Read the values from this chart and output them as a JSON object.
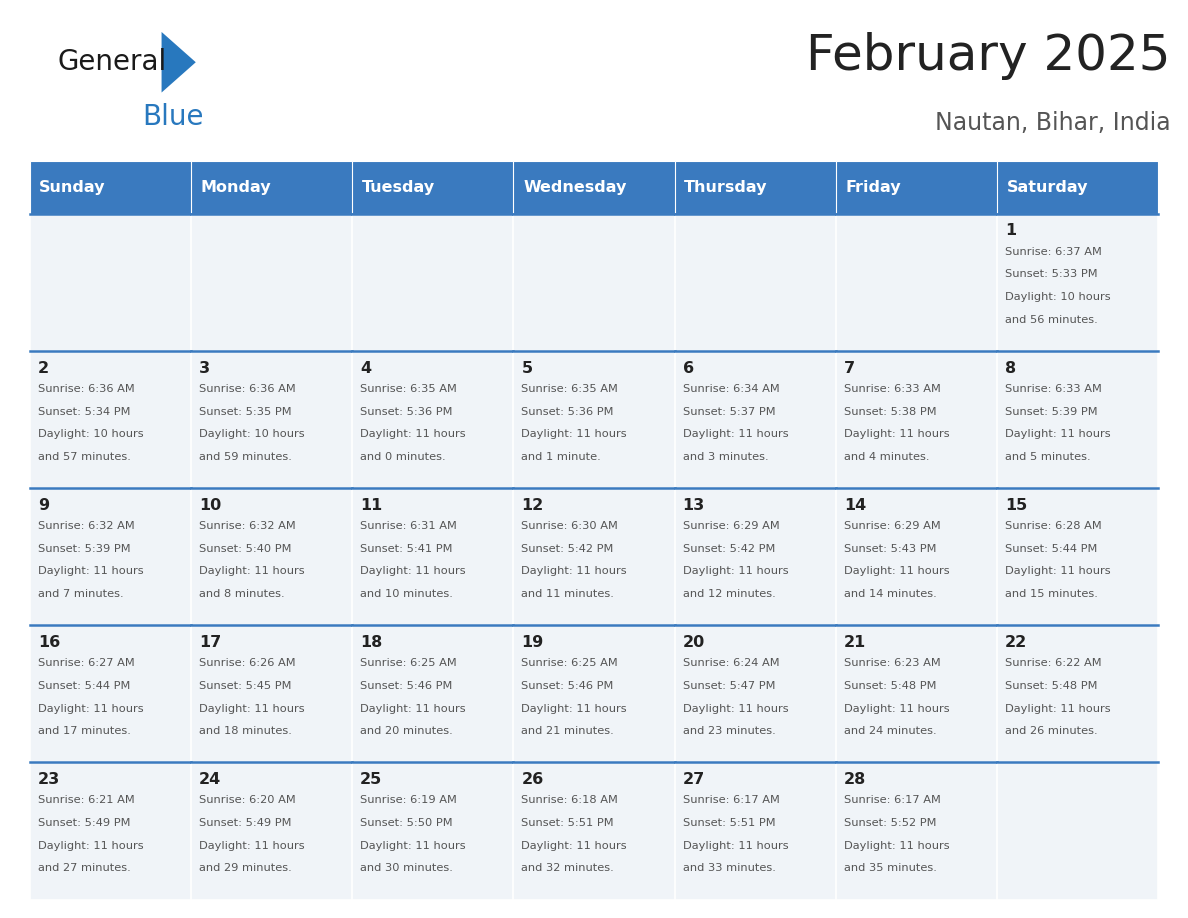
{
  "title": "February 2025",
  "subtitle": "Nautan, Bihar, India",
  "header_color": "#3a7abf",
  "header_text_color": "#ffffff",
  "days_of_week": [
    "Sunday",
    "Monday",
    "Tuesday",
    "Wednesday",
    "Thursday",
    "Friday",
    "Saturday"
  ],
  "cell_bg_odd": "#f0f4f8",
  "cell_bg_even": "#ffffff",
  "border_color": "#3a7abf",
  "title_color": "#222222",
  "subtitle_color": "#555555",
  "day_num_color": "#222222",
  "info_color": "#555555",
  "logo_black": "#1a1a1a",
  "logo_blue": "#2878be",
  "calendar": [
    [
      null,
      null,
      null,
      null,
      null,
      null,
      {
        "day": 1,
        "sunrise": "6:37 AM",
        "sunset": "5:33 PM",
        "daylight": "10 hours and 56 minutes."
      }
    ],
    [
      {
        "day": 2,
        "sunrise": "6:36 AM",
        "sunset": "5:34 PM",
        "daylight": "10 hours and 57 minutes."
      },
      {
        "day": 3,
        "sunrise": "6:36 AM",
        "sunset": "5:35 PM",
        "daylight": "10 hours and 59 minutes."
      },
      {
        "day": 4,
        "sunrise": "6:35 AM",
        "sunset": "5:36 PM",
        "daylight": "11 hours and 0 minutes."
      },
      {
        "day": 5,
        "sunrise": "6:35 AM",
        "sunset": "5:36 PM",
        "daylight": "11 hours and 1 minute."
      },
      {
        "day": 6,
        "sunrise": "6:34 AM",
        "sunset": "5:37 PM",
        "daylight": "11 hours and 3 minutes."
      },
      {
        "day": 7,
        "sunrise": "6:33 AM",
        "sunset": "5:38 PM",
        "daylight": "11 hours and 4 minutes."
      },
      {
        "day": 8,
        "sunrise": "6:33 AM",
        "sunset": "5:39 PM",
        "daylight": "11 hours and 5 minutes."
      }
    ],
    [
      {
        "day": 9,
        "sunrise": "6:32 AM",
        "sunset": "5:39 PM",
        "daylight": "11 hours and 7 minutes."
      },
      {
        "day": 10,
        "sunrise": "6:32 AM",
        "sunset": "5:40 PM",
        "daylight": "11 hours and 8 minutes."
      },
      {
        "day": 11,
        "sunrise": "6:31 AM",
        "sunset": "5:41 PM",
        "daylight": "11 hours and 10 minutes."
      },
      {
        "day": 12,
        "sunrise": "6:30 AM",
        "sunset": "5:42 PM",
        "daylight": "11 hours and 11 minutes."
      },
      {
        "day": 13,
        "sunrise": "6:29 AM",
        "sunset": "5:42 PM",
        "daylight": "11 hours and 12 minutes."
      },
      {
        "day": 14,
        "sunrise": "6:29 AM",
        "sunset": "5:43 PM",
        "daylight": "11 hours and 14 minutes."
      },
      {
        "day": 15,
        "sunrise": "6:28 AM",
        "sunset": "5:44 PM",
        "daylight": "11 hours and 15 minutes."
      }
    ],
    [
      {
        "day": 16,
        "sunrise": "6:27 AM",
        "sunset": "5:44 PM",
        "daylight": "11 hours and 17 minutes."
      },
      {
        "day": 17,
        "sunrise": "6:26 AM",
        "sunset": "5:45 PM",
        "daylight": "11 hours and 18 minutes."
      },
      {
        "day": 18,
        "sunrise": "6:25 AM",
        "sunset": "5:46 PM",
        "daylight": "11 hours and 20 minutes."
      },
      {
        "day": 19,
        "sunrise": "6:25 AM",
        "sunset": "5:46 PM",
        "daylight": "11 hours and 21 minutes."
      },
      {
        "day": 20,
        "sunrise": "6:24 AM",
        "sunset": "5:47 PM",
        "daylight": "11 hours and 23 minutes."
      },
      {
        "day": 21,
        "sunrise": "6:23 AM",
        "sunset": "5:48 PM",
        "daylight": "11 hours and 24 minutes."
      },
      {
        "day": 22,
        "sunrise": "6:22 AM",
        "sunset": "5:48 PM",
        "daylight": "11 hours and 26 minutes."
      }
    ],
    [
      {
        "day": 23,
        "sunrise": "6:21 AM",
        "sunset": "5:49 PM",
        "daylight": "11 hours and 27 minutes."
      },
      {
        "day": 24,
        "sunrise": "6:20 AM",
        "sunset": "5:49 PM",
        "daylight": "11 hours and 29 minutes."
      },
      {
        "day": 25,
        "sunrise": "6:19 AM",
        "sunset": "5:50 PM",
        "daylight": "11 hours and 30 minutes."
      },
      {
        "day": 26,
        "sunrise": "6:18 AM",
        "sunset": "5:51 PM",
        "daylight": "11 hours and 32 minutes."
      },
      {
        "day": 27,
        "sunrise": "6:17 AM",
        "sunset": "5:51 PM",
        "daylight": "11 hours and 33 minutes."
      },
      {
        "day": 28,
        "sunrise": "6:17 AM",
        "sunset": "5:52 PM",
        "daylight": "11 hours and 35 minutes."
      },
      null
    ]
  ]
}
